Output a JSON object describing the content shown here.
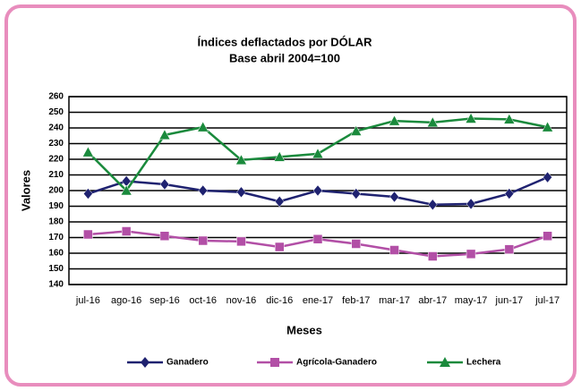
{
  "chart_data": {
    "type": "line",
    "title": "Índices deflactados por DÓLAR",
    "subtitle": "Base abril 2004=100",
    "x_label": "Meses",
    "y_label": "Valores",
    "categories": [
      "jul-16",
      "ago-16",
      "sep-16",
      "oct-16",
      "nov-16",
      "dic-16",
      "ene-17",
      "feb-17",
      "mar-17",
      "abr-17",
      "may-17",
      "jun-17",
      "jul-17"
    ],
    "series": [
      {
        "name": "Ganadero",
        "color": "#1f2270",
        "marker": "diamond",
        "values": [
          198,
          206,
          204,
          200,
          199,
          193,
          200,
          198,
          196,
          191,
          191.5,
          198,
          208.5
        ]
      },
      {
        "name": "Agrícola-Ganadero",
        "color": "#b24fa6",
        "marker": "square",
        "values": [
          172,
          174,
          171,
          168,
          167.5,
          164,
          169,
          166,
          162,
          158,
          159.5,
          162.5,
          171
        ]
      },
      {
        "name": "Lechera",
        "color": "#1a8a3c",
        "marker": "triangle",
        "values": [
          224.5,
          200,
          235.5,
          240.5,
          219.5,
          221.5,
          223.5,
          238,
          244.5,
          243.5,
          246,
          245.5,
          240.5
        ]
      }
    ],
    "ylim": [
      140,
      260
    ],
    "yticks": [
      140,
      150,
      160,
      170,
      180,
      190,
      200,
      210,
      220,
      230,
      240,
      250,
      260
    ],
    "grid": true,
    "legend": "bottom"
  }
}
